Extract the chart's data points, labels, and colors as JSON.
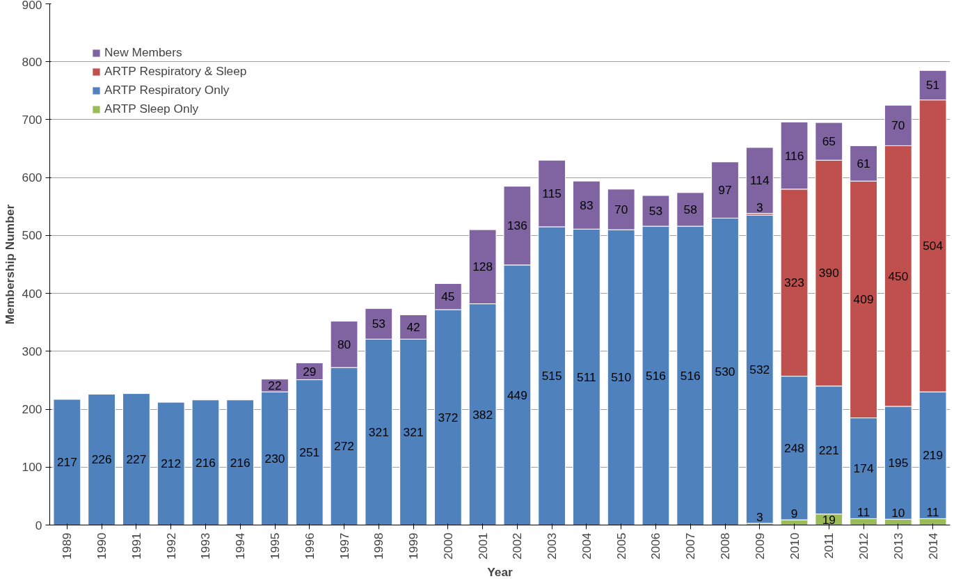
{
  "chart_data": {
    "type": "bar",
    "stacked": true,
    "xlabel": "Year",
    "ylabel": "Membership Number",
    "categories": [
      "1989",
      "1990",
      "1991",
      "1992",
      "1993",
      "1994",
      "1995",
      "1996",
      "1997",
      "1998",
      "1999",
      "2000",
      "2001",
      "2002",
      "2003",
      "2004",
      "2005",
      "2006",
      "2007",
      "2008",
      "2009",
      "2010",
      "2011",
      "2012",
      "2013",
      "2014"
    ],
    "series": [
      {
        "name": "ARTP Sleep Only",
        "color": "#9bbb59",
        "values": [
          null,
          null,
          null,
          null,
          null,
          null,
          null,
          null,
          null,
          null,
          null,
          null,
          null,
          null,
          null,
          null,
          null,
          null,
          null,
          null,
          3,
          9,
          19,
          11,
          10,
          11
        ]
      },
      {
        "name": "ARTP Respiratory Only",
        "color": "#4f81bd",
        "values": [
          217,
          226,
          227,
          212,
          216,
          216,
          230,
          251,
          272,
          321,
          321,
          372,
          382,
          449,
          515,
          511,
          510,
          516,
          516,
          530,
          532,
          248,
          221,
          174,
          195,
          219
        ]
      },
      {
        "name": "ARTP Respiratory & Sleep",
        "color": "#c0504d",
        "values": [
          null,
          null,
          null,
          null,
          null,
          null,
          null,
          null,
          null,
          null,
          null,
          null,
          null,
          null,
          null,
          null,
          null,
          null,
          null,
          null,
          3,
          323,
          390,
          409,
          450,
          504
        ]
      },
      {
        "name": "New Members",
        "color": "#8064a2",
        "values": [
          null,
          null,
          null,
          null,
          null,
          null,
          22,
          29,
          80,
          53,
          42,
          45,
          128,
          136,
          115,
          83,
          70,
          53,
          58,
          97,
          114,
          116,
          65,
          61,
          70,
          51
        ]
      }
    ],
    "ylim": [
      0,
      900
    ],
    "yticks": [
      0,
      100,
      200,
      300,
      400,
      500,
      600,
      700,
      800,
      900
    ],
    "grid": "y",
    "legend": "top left",
    "data_labels": true
  }
}
